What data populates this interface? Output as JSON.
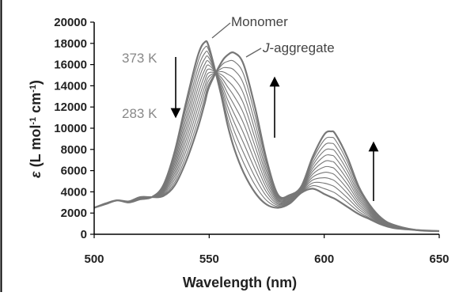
{
  "chart_data": {
    "type": "line",
    "xlabel": "Wavelength (nm)",
    "ylabel_parts": [
      "ε",
      " (L mol",
      "-1",
      " cm",
      "-1",
      ")"
    ],
    "xlim": [
      500,
      650
    ],
    "ylim": [
      0,
      20000
    ],
    "xticks": [
      500,
      550,
      600,
      650
    ],
    "yticks": [
      0,
      2000,
      4000,
      6000,
      8000,
      10000,
      12000,
      14000,
      16000,
      18000,
      20000
    ],
    "grid": false,
    "annotations": {
      "monomer": "Monomer",
      "aggregate_italic": "J",
      "aggregate_rest": "-aggregate",
      "temp_high": "373 K",
      "temp_low": "283 K"
    },
    "x": [
      500,
      505,
      510,
      515,
      520,
      525,
      530,
      535,
      540,
      545,
      548,
      550,
      555,
      558,
      561,
      565,
      570,
      575,
      580,
      585,
      590,
      595,
      600,
      603,
      605,
      610,
      615,
      620,
      625,
      630,
      640,
      650
    ],
    "series_count": 12,
    "series_first": {
      "label": "373 K",
      "values": [
        2500,
        2900,
        3200,
        3000,
        3300,
        3500,
        4600,
        7800,
        12500,
        16800,
        18100,
        17600,
        13300,
        10300,
        8000,
        5800,
        3900,
        2800,
        2500,
        2900,
        3900,
        4300,
        3800,
        3500,
        3300,
        2600,
        1900,
        1400,
        900,
        600,
        400,
        300
      ]
    },
    "series_last": {
      "label": "283 K",
      "values": [
        2500,
        2850,
        3200,
        3100,
        3500,
        3500,
        3600,
        4600,
        6900,
        10000,
        12300,
        13900,
        16100,
        16900,
        17100,
        16000,
        11900,
        7000,
        3700,
        3700,
        4500,
        7300,
        9400,
        9700,
        9400,
        7300,
        4500,
        2700,
        1500,
        900,
        400,
        300
      ]
    },
    "colors": {
      "curve": "#777777",
      "axis": "#000000",
      "text": "#222222"
    }
  }
}
